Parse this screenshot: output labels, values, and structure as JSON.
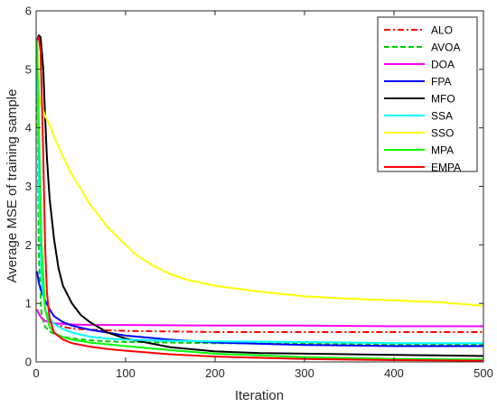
{
  "chart_data": {
    "type": "line",
    "title": "",
    "xlabel": "Iteration",
    "ylabel": "Average MSE of training sample",
    "xlim": [
      0,
      500
    ],
    "ylim": [
      0,
      6
    ],
    "xticks": [
      "0",
      "100",
      "200",
      "300",
      "400",
      "500"
    ],
    "yticks": [
      "0",
      "1",
      "2",
      "3",
      "4",
      "5",
      "6"
    ],
    "grid": false,
    "legend_position": "top-right",
    "series": [
      {
        "name": "ALO",
        "color": "#ff0000",
        "dash": "dash-dot",
        "x": [
          1,
          3,
          6,
          10,
          15,
          20,
          30,
          40,
          60,
          80,
          100,
          150,
          200,
          300,
          400,
          500
        ],
        "y": [
          5.5,
          3.5,
          1.5,
          0.9,
          0.72,
          0.66,
          0.6,
          0.57,
          0.55,
          0.54,
          0.53,
          0.52,
          0.51,
          0.51,
          0.51,
          0.51
        ]
      },
      {
        "name": "AVOA",
        "color": "#00cc00",
        "dash": "dashed",
        "x": [
          1,
          3,
          6,
          10,
          15,
          20,
          30,
          40,
          60,
          80,
          100,
          150,
          200,
          300,
          400,
          500
        ],
        "y": [
          5.2,
          1.8,
          0.8,
          0.6,
          0.52,
          0.48,
          0.43,
          0.4,
          0.37,
          0.35,
          0.34,
          0.33,
          0.32,
          0.31,
          0.3,
          0.3
        ]
      },
      {
        "name": "DOA",
        "color": "#ff00ff",
        "dash": "solid",
        "x": [
          1,
          3,
          6,
          10,
          20,
          40,
          60,
          100,
          200,
          300,
          400,
          500
        ],
        "y": [
          0.9,
          0.82,
          0.75,
          0.7,
          0.66,
          0.64,
          0.63,
          0.63,
          0.62,
          0.62,
          0.61,
          0.61
        ]
      },
      {
        "name": "FPA",
        "color": "#0000ff",
        "dash": "solid",
        "x": [
          1,
          3,
          6,
          10,
          15,
          20,
          30,
          40,
          60,
          80,
          100,
          150,
          200,
          300,
          400,
          500
        ],
        "y": [
          1.55,
          1.35,
          1.2,
          1.05,
          0.9,
          0.78,
          0.68,
          0.62,
          0.55,
          0.5,
          0.45,
          0.38,
          0.33,
          0.29,
          0.27,
          0.27
        ]
      },
      {
        "name": "MFO",
        "color": "#000000",
        "dash": "solid",
        "x": [
          1,
          3,
          5,
          8,
          10,
          12,
          15,
          20,
          25,
          30,
          40,
          50,
          60,
          80,
          100,
          150,
          200,
          250,
          300,
          400,
          500
        ],
        "y": [
          5.5,
          5.58,
          5.55,
          5.0,
          4.2,
          3.5,
          2.8,
          2.1,
          1.6,
          1.3,
          1.0,
          0.8,
          0.68,
          0.5,
          0.4,
          0.25,
          0.18,
          0.15,
          0.14,
          0.12,
          0.1
        ]
      },
      {
        "name": "SSA",
        "color": "#00ffff",
        "dash": "solid",
        "x": [
          1,
          3,
          6,
          10,
          15,
          20,
          30,
          40,
          60,
          80,
          100,
          150,
          200,
          300,
          400,
          500
        ],
        "y": [
          5.4,
          3.0,
          1.4,
          0.9,
          0.75,
          0.65,
          0.56,
          0.5,
          0.43,
          0.4,
          0.38,
          0.36,
          0.35,
          0.34,
          0.32,
          0.32
        ]
      },
      {
        "name": "SSO",
        "color": "#ffff00",
        "dash": "solid",
        "x": [
          1,
          3,
          5,
          8,
          10,
          15,
          20,
          30,
          40,
          50,
          60,
          70,
          80,
          90,
          100,
          110,
          120,
          130,
          150,
          170,
          200,
          250,
          300,
          350,
          400,
          450,
          500
        ],
        "y": [
          5.5,
          4.6,
          4.4,
          4.3,
          4.2,
          4.05,
          3.85,
          3.5,
          3.2,
          2.95,
          2.7,
          2.5,
          2.3,
          2.15,
          2.0,
          1.85,
          1.75,
          1.65,
          1.5,
          1.4,
          1.3,
          1.2,
          1.12,
          1.08,
          1.05,
          1.02,
          0.96
        ]
      },
      {
        "name": "MPA",
        "color": "#00ff00",
        "dash": "solid",
        "x": [
          1,
          3,
          6,
          10,
          15,
          20,
          30,
          40,
          60,
          80,
          100,
          150,
          200,
          300,
          400,
          500
        ],
        "y": [
          5.5,
          4.0,
          2.0,
          0.9,
          0.6,
          0.5,
          0.42,
          0.38,
          0.33,
          0.3,
          0.27,
          0.2,
          0.14,
          0.08,
          0.05,
          0.04
        ]
      },
      {
        "name": "EMPA",
        "color": "#ff0000",
        "dash": "solid",
        "x": [
          1,
          3,
          5,
          8,
          10,
          12,
          15,
          20,
          30,
          40,
          60,
          80,
          100,
          150,
          200,
          300,
          400,
          500
        ],
        "y": [
          5.5,
          5.55,
          5.3,
          3.5,
          2.0,
          1.2,
          0.75,
          0.5,
          0.38,
          0.32,
          0.26,
          0.22,
          0.19,
          0.13,
          0.09,
          0.05,
          0.03,
          0.02
        ]
      }
    ]
  }
}
